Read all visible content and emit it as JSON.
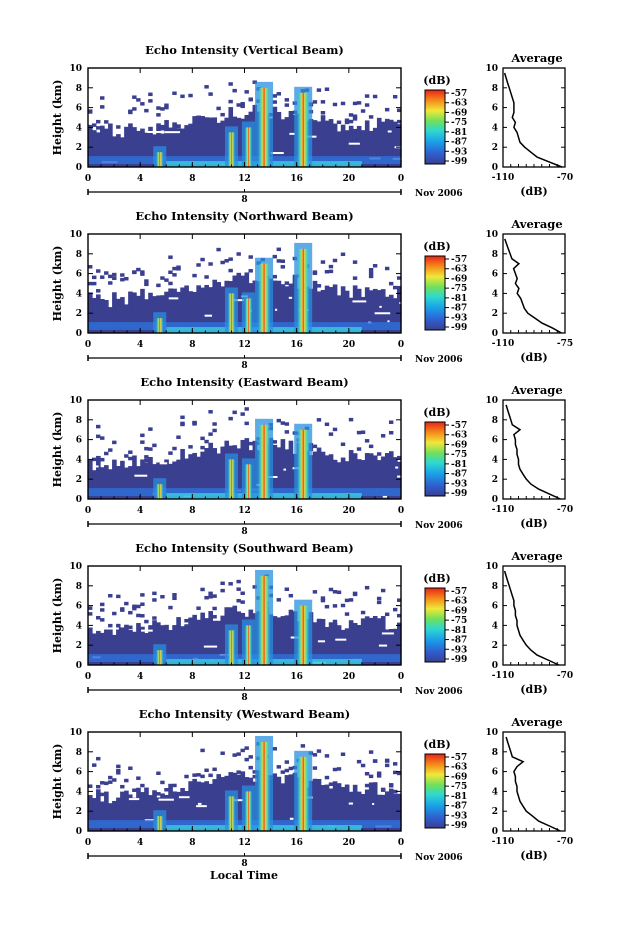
{
  "page": {
    "xlabel": "Local Time",
    "date_label": "Nov 2006",
    "colorbar_unit": "(dB)",
    "colorbar_ticks": [
      "-57",
      "-63",
      "-69",
      "-75",
      "-81",
      "-87",
      "-93",
      "-99"
    ],
    "average_title": "Average",
    "average_xlabel": "(dB)",
    "ylabel": "Height (km)",
    "date_tick": "8",
    "colors": {
      "background": "#ffffff",
      "low_echo": "#3a3f8f",
      "axis": "#000000"
    }
  },
  "chart_data": [
    {
      "type": "heatmap",
      "title": "Echo Intensity (Vertical Beam)",
      "xlabel": "Local Time",
      "ylabel": "Height (km)",
      "x_ticks": [
        "0",
        "4",
        "8",
        "12",
        "16",
        "20",
        "0"
      ],
      "xlim": [
        0,
        24
      ],
      "y_ticks": [
        "0",
        "2",
        "4",
        "6",
        "8",
        "10"
      ],
      "ylim": [
        0,
        10
      ],
      "zlim_dB": [
        -99,
        -57
      ],
      "convective_cells_hour": [
        5.5,
        11,
        12.3,
        13.5,
        16.5
      ],
      "cell_tops_km": [
        1.5,
        3.5,
        4,
        8,
        7.5
      ],
      "average_profile": {
        "title": "Average",
        "xlabel": "(dB)",
        "x_ticks": [
          "-110",
          "-70"
        ],
        "xlim": [
          -110,
          -70
        ],
        "y_ticks": [
          "0",
          "2",
          "4",
          "6",
          "8",
          "10"
        ],
        "ylim": [
          0,
          10
        ],
        "height_km": [
          0,
          0.5,
          1,
          1.5,
          2,
          2.5,
          3,
          3.5,
          4,
          4.5,
          5,
          5.5,
          6,
          6.5,
          7,
          7.5,
          8,
          8.5,
          9,
          9.5
        ],
        "dB": [
          -72,
          -80,
          -88,
          -92,
          -96,
          -99,
          -100,
          -101,
          -103,
          -102,
          -104,
          -103,
          -103,
          -103,
          -104,
          -105,
          -106,
          -107,
          -108,
          -109
        ]
      }
    },
    {
      "type": "heatmap",
      "title": "Echo Intensity (Northward Beam)",
      "xlabel": "Local Time",
      "ylabel": "Height (km)",
      "x_ticks": [
        "0",
        "4",
        "8",
        "12",
        "16",
        "20",
        "0"
      ],
      "xlim": [
        0,
        24
      ],
      "y_ticks": [
        "0",
        "2",
        "4",
        "6",
        "8",
        "10"
      ],
      "ylim": [
        0,
        10
      ],
      "zlim_dB": [
        -99,
        -57
      ],
      "convective_cells_hour": [
        5.5,
        11,
        12.3,
        13.5,
        16.5
      ],
      "cell_tops_km": [
        1.5,
        4,
        3.5,
        7,
        8.5
      ],
      "average_profile": {
        "title": "Average",
        "xlabel": "(dB)",
        "x_ticks": [
          "-110",
          "-75"
        ],
        "xlim": [
          -110,
          -75
        ],
        "y_ticks": [
          "0",
          "2",
          "4",
          "6",
          "8",
          "10"
        ],
        "ylim": [
          0,
          10
        ],
        "height_km": [
          0,
          0.5,
          1,
          1.5,
          2,
          2.5,
          3,
          3.5,
          4,
          4.5,
          5,
          5.5,
          6,
          6.5,
          7,
          7.5,
          8,
          8.5,
          9,
          9.5
        ],
        "dB": [
          -77,
          -82,
          -88,
          -92,
          -96,
          -98,
          -99,
          -100,
          -102,
          -101,
          -103,
          -102,
          -103,
          -104,
          -101,
          -105,
          -106,
          -107,
          -108,
          -109
        ]
      }
    },
    {
      "type": "heatmap",
      "title": "Echo Intensity (Eastward Beam)",
      "xlabel": "Local Time",
      "ylabel": "Height (km)",
      "x_ticks": [
        "0",
        "4",
        "8",
        "12",
        "16",
        "20",
        "0"
      ],
      "xlim": [
        0,
        24
      ],
      "y_ticks": [
        "0",
        "2",
        "4",
        "6",
        "8",
        "10"
      ],
      "ylim": [
        0,
        10
      ],
      "zlim_dB": [
        -99,
        -57
      ],
      "convective_cells_hour": [
        5.5,
        11,
        12.3,
        13.5,
        16.5
      ],
      "cell_tops_km": [
        1.5,
        4,
        3.5,
        7.5,
        7
      ],
      "average_profile": {
        "title": "Average",
        "xlabel": "(dB)",
        "x_ticks": [
          "-110",
          "-70"
        ],
        "xlim": [
          -110,
          -70
        ],
        "y_ticks": [
          "0",
          "2",
          "4",
          "6",
          "8",
          "10"
        ],
        "ylim": [
          0,
          10
        ],
        "height_km": [
          0,
          0.5,
          1,
          1.5,
          2,
          2.5,
          3,
          3.5,
          4,
          4.5,
          5,
          5.5,
          6,
          6.5,
          7,
          7.5,
          8,
          8.5,
          9,
          9.5
        ],
        "dB": [
          -73,
          -80,
          -87,
          -92,
          -95,
          -97,
          -99,
          -100,
          -100,
          -101,
          -101,
          -102,
          -102,
          -103,
          -99,
          -104,
          -105,
          -106,
          -107,
          -108
        ]
      }
    },
    {
      "type": "heatmap",
      "title": "Echo Intensity (Southward Beam)",
      "xlabel": "Local Time",
      "ylabel": "Height (km)",
      "x_ticks": [
        "0",
        "4",
        "8",
        "12",
        "16",
        "20",
        "0"
      ],
      "xlim": [
        0,
        24
      ],
      "y_ticks": [
        "0",
        "2",
        "4",
        "6",
        "8",
        "10"
      ],
      "ylim": [
        0,
        10
      ],
      "zlim_dB": [
        -99,
        -57
      ],
      "convective_cells_hour": [
        5.5,
        11,
        12.3,
        13.5,
        16.5
      ],
      "cell_tops_km": [
        1.5,
        3.5,
        4,
        9,
        6
      ],
      "average_profile": {
        "title": "Average",
        "xlabel": "(dB)",
        "x_ticks": [
          "-110",
          "-70"
        ],
        "xlim": [
          -110,
          -70
        ],
        "y_ticks": [
          "0",
          "2",
          "4",
          "6",
          "8",
          "10"
        ],
        "ylim": [
          0,
          10
        ],
        "height_km": [
          0,
          0.5,
          1,
          1.5,
          2,
          2.5,
          3,
          3.5,
          4,
          4.5,
          5,
          5.5,
          6,
          6.5,
          7,
          7.5,
          8,
          8.5,
          9,
          9.5
        ],
        "dB": [
          -74,
          -81,
          -88,
          -92,
          -95,
          -97,
          -99,
          -100,
          -101,
          -101,
          -102,
          -102,
          -103,
          -103,
          -104,
          -105,
          -106,
          -107,
          -108,
          -109
        ]
      }
    },
    {
      "type": "heatmap",
      "title": "Echo Intensity (Westward Beam)",
      "xlabel": "Local Time",
      "ylabel": "Height (km)",
      "x_ticks": [
        "0",
        "4",
        "8",
        "12",
        "16",
        "20",
        "0"
      ],
      "xlim": [
        0,
        24
      ],
      "y_ticks": [
        "0",
        "2",
        "4",
        "6",
        "8",
        "10"
      ],
      "ylim": [
        0,
        10
      ],
      "zlim_dB": [
        -99,
        -57
      ],
      "convective_cells_hour": [
        5.5,
        11,
        12.3,
        13.5,
        16.5
      ],
      "cell_tops_km": [
        1.5,
        3.5,
        4,
        9,
        7.5
      ],
      "average_profile": {
        "title": "Average",
        "xlabel": "(dB)",
        "x_ticks": [
          "-110",
          "-70"
        ],
        "xlim": [
          -110,
          -70
        ],
        "y_ticks": [
          "0",
          "2",
          "4",
          "6",
          "8",
          "10"
        ],
        "ylim": [
          0,
          10
        ],
        "height_km": [
          0,
          0.5,
          1,
          1.5,
          2,
          2.5,
          3,
          3.5,
          4,
          4.5,
          5,
          5.5,
          6,
          6.5,
          7,
          7.5,
          8,
          8.5,
          9,
          9.5
        ],
        "dB": [
          -73,
          -80,
          -87,
          -91,
          -95,
          -97,
          -99,
          -100,
          -101,
          -101,
          -102,
          -102,
          -103,
          -101,
          -97,
          -104,
          -105,
          -106,
          -107,
          -108
        ]
      }
    }
  ]
}
